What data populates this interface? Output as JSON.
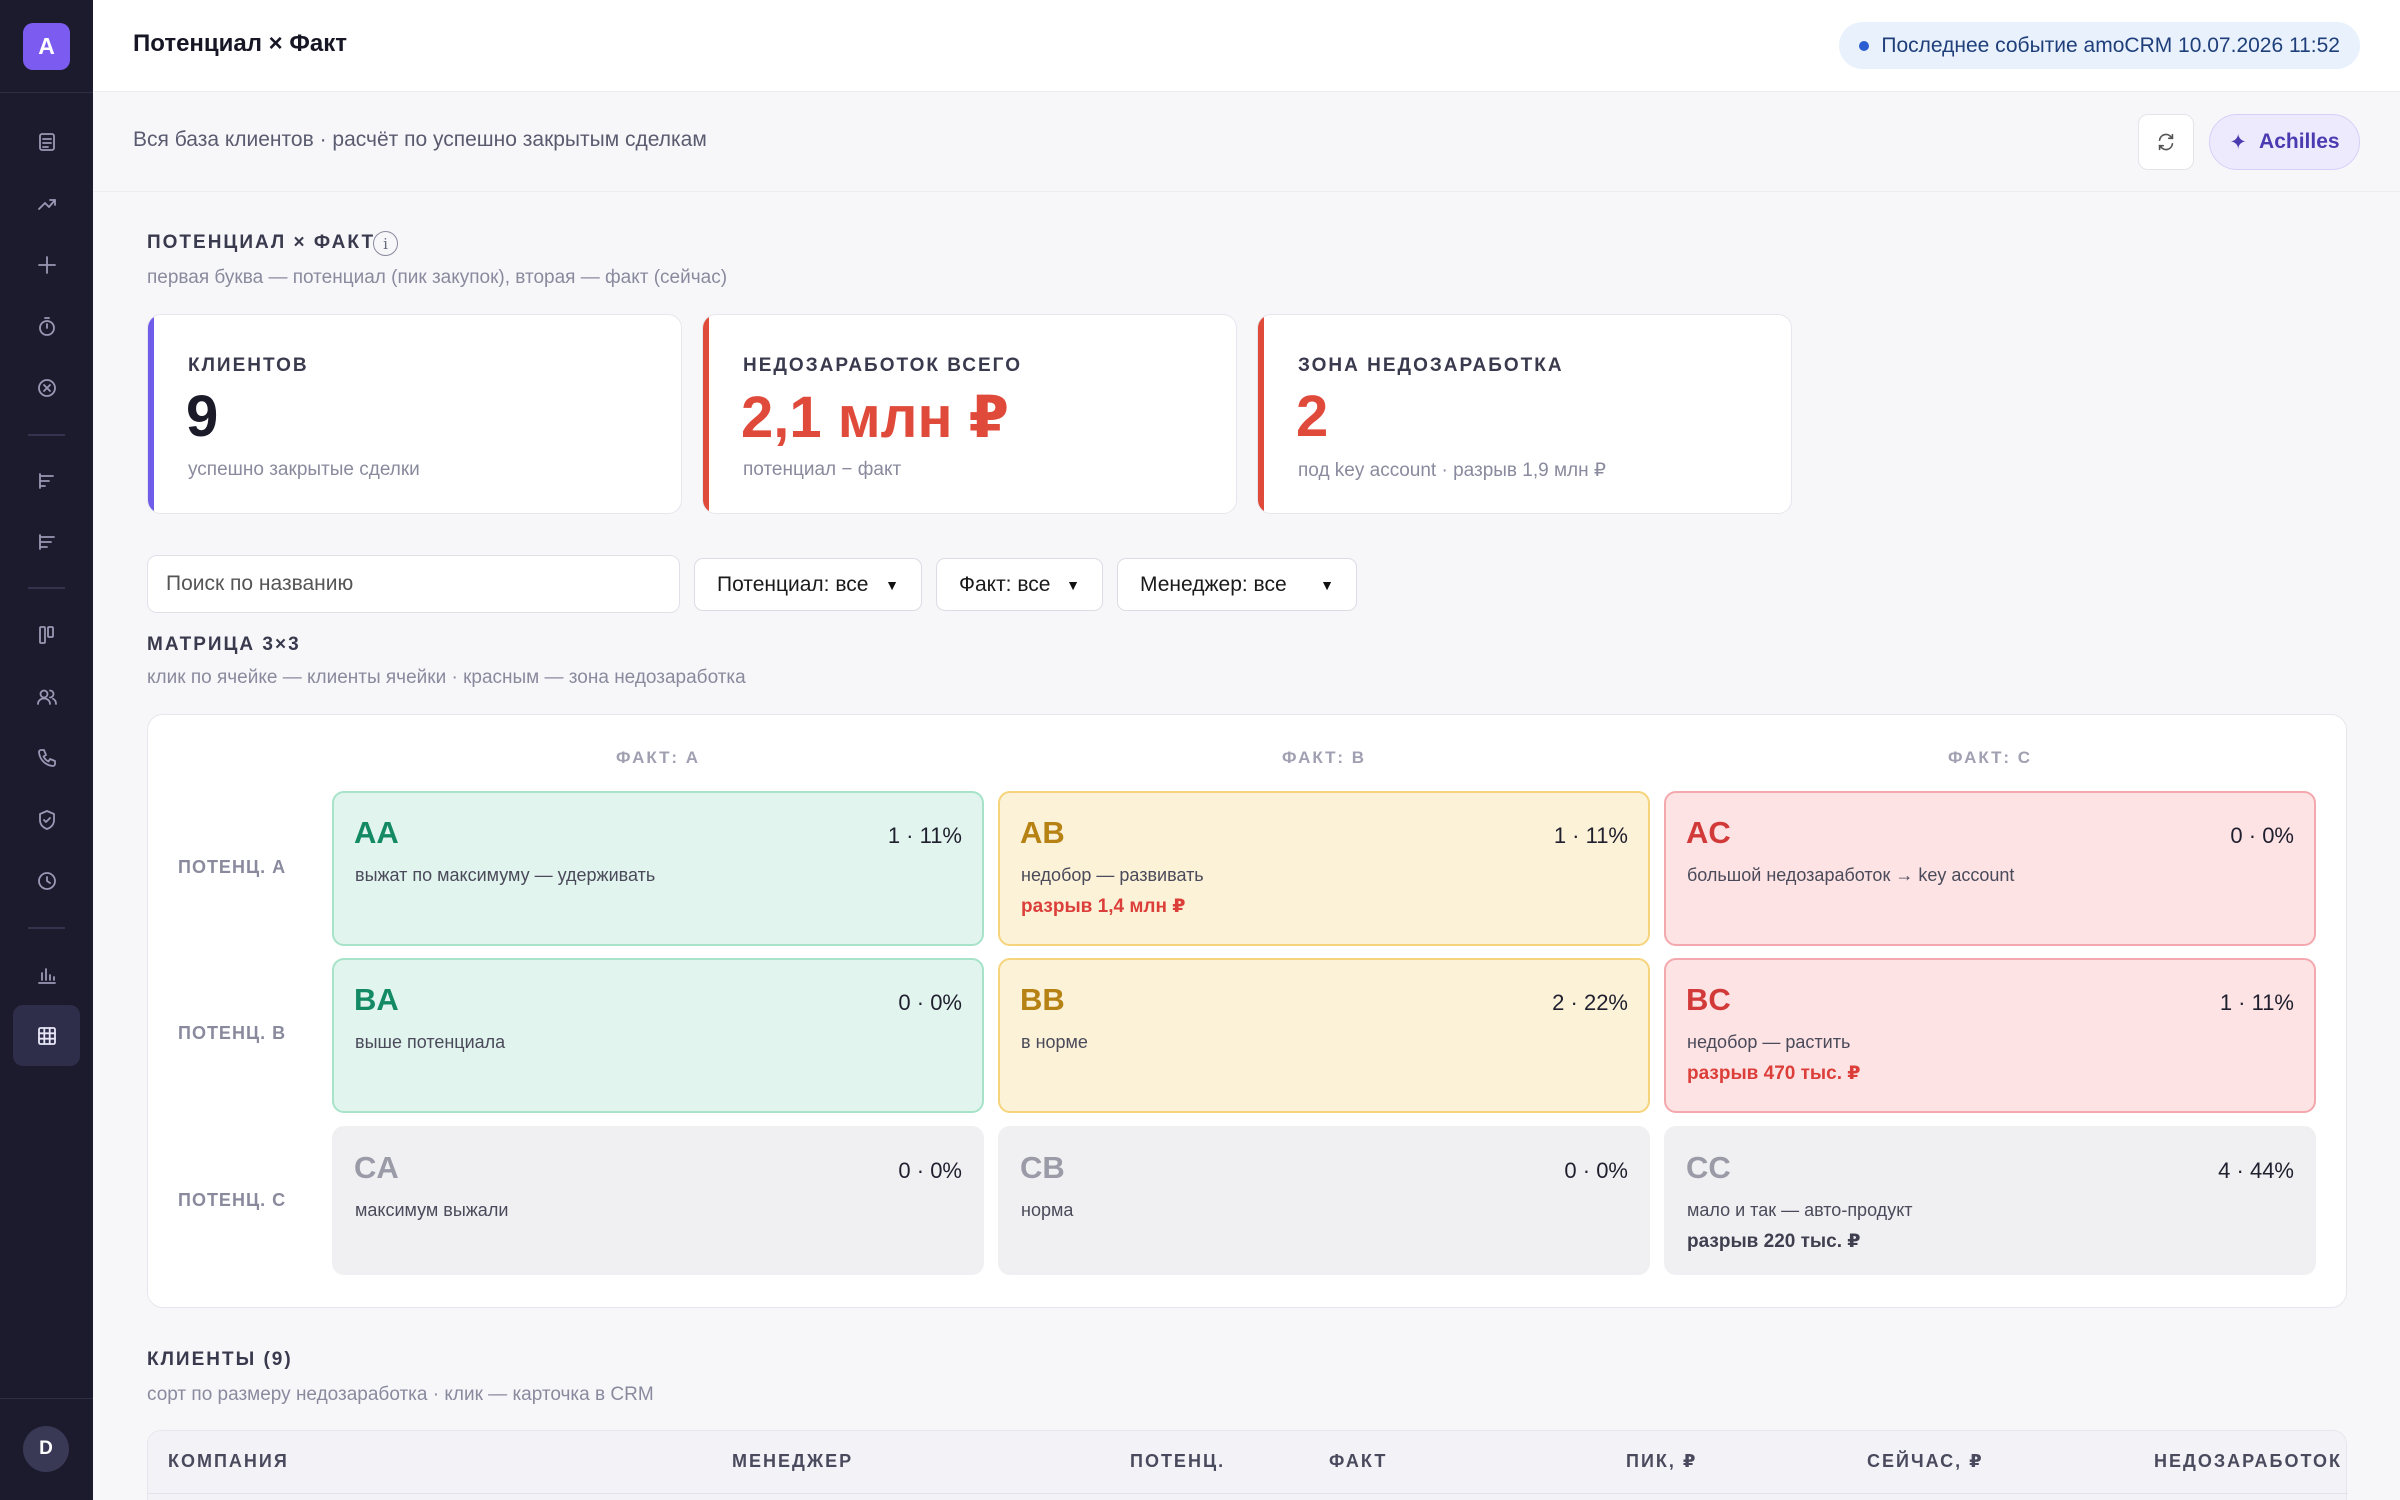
{
  "app": {
    "logo_letter": "A",
    "user_initial": "D"
  },
  "header": {
    "title": "Потенциал × Факт",
    "event_status": "Последнее событие amoCRM 10.07.2026 11:52"
  },
  "subheader": {
    "description": "Вся база клиентов · расчёт по успешно закрытым сделкам",
    "achilles_label": "Achilles",
    "achilles_icon": "✦"
  },
  "sidebar": {
    "items": [
      {
        "name": "sidebar-item-documents",
        "icon": "document-icon"
      },
      {
        "name": "sidebar-item-trends",
        "icon": "trend-icon"
      },
      {
        "name": "sidebar-item-add",
        "icon": "plus-icon"
      },
      {
        "name": "sidebar-item-timer",
        "icon": "timer-icon"
      },
      {
        "name": "sidebar-item-lost",
        "icon": "x-circle-icon"
      },
      {
        "name": "sidebar-item-reports",
        "icon": "bars-icon"
      },
      {
        "name": "sidebar-item-reports-2",
        "icon": "bars-icon"
      },
      {
        "name": "sidebar-item-board",
        "icon": "kanban-icon"
      },
      {
        "name": "sidebar-item-users",
        "icon": "users-icon"
      },
      {
        "name": "sidebar-item-calls",
        "icon": "phone-icon"
      },
      {
        "name": "sidebar-item-security",
        "icon": "shield-icon"
      },
      {
        "name": "sidebar-item-history",
        "icon": "clock-icon"
      },
      {
        "name": "sidebar-item-analytics",
        "icon": "chart-icon"
      },
      {
        "name": "sidebar-item-matrix",
        "icon": "grid-icon",
        "active": true
      }
    ]
  },
  "section": {
    "title": "ПОТЕНЦИАЛ × ФАКТ",
    "subtitle": "первая буква — потенциал (пик закупок), вторая — факт (сейчас)"
  },
  "kpis": [
    {
      "label": "КЛИЕНТОВ",
      "value": "9",
      "note": "успешно закрытые сделки",
      "accent": "#6f5ce8",
      "value_color": "#1a1a28"
    },
    {
      "label": "НЕДОЗАРАБОТОК ВСЕГО",
      "value": "2,1 млн ₽",
      "note": "потенциал − факт",
      "accent": "#e04a3a",
      "value_color": "#e04a3a"
    },
    {
      "label": "ЗОНА НЕДОЗАРАБОТКА",
      "value": "2",
      "note": "под key account · разрыв 1,9 млн ₽",
      "accent": "#e04a3a",
      "value_color": "#e04a3a"
    }
  ],
  "filters": {
    "search_placeholder": "Поиск по названию",
    "potential": "Потенциал: все",
    "fact": "Факт: все",
    "manager": "Менеджер: все"
  },
  "matrix": {
    "title": "МАТРИЦА 3×3",
    "subtitle": "клик по ячейке — клиенты ячейки · красным — зона недозаработка",
    "col_headers": [
      "ФАКТ: A",
      "ФАКТ: B",
      "ФАКТ: C"
    ],
    "row_headers": [
      "ПОТЕНЦ. A",
      "ПОТЕНЦ. B",
      "ПОТЕНЦ. C"
    ],
    "cells": [
      {
        "code": "AA",
        "stat": "1 · 11%",
        "desc": "выжат по максимуму — удерживать",
        "gap": ""
      },
      {
        "code": "AB",
        "stat": "1 · 11%",
        "desc": "недобор — развивать",
        "gap": "разрыв 1,4 млн ₽"
      },
      {
        "code": "AC",
        "stat": "0 · 0%",
        "desc": "большой недозаработок → key account",
        "gap": ""
      },
      {
        "code": "BA",
        "stat": "0 · 0%",
        "desc": "выше потенциала",
        "gap": ""
      },
      {
        "code": "BB",
        "stat": "2 · 22%",
        "desc": "в норме",
        "gap": ""
      },
      {
        "code": "BC",
        "stat": "1 · 11%",
        "desc": "недобор — растить",
        "gap": "разрыв 470 тыс. ₽"
      },
      {
        "code": "CA",
        "stat": "0 · 0%",
        "desc": "максимум выжали",
        "gap": ""
      },
      {
        "code": "CB",
        "stat": "0 · 0%",
        "desc": "норма",
        "gap": ""
      },
      {
        "code": "CC",
        "stat": "4 · 44%",
        "desc": "мало и так — авто-продукт",
        "gap": "разрыв 220 тыс. ₽"
      }
    ]
  },
  "clients": {
    "title": "КЛИЕНТЫ (9)",
    "subtitle": "сорт по размеру недозаработка · клик — карточка в CRM",
    "columns": [
      "КОМПАНИЯ",
      "МЕНЕДЖЕР",
      "ПОТЕНЦ.",
      "ФАКТ",
      "ПИК, ₽",
      "СЕЙЧАС, ₽",
      "НЕДОЗАРАБОТОК"
    ]
  }
}
